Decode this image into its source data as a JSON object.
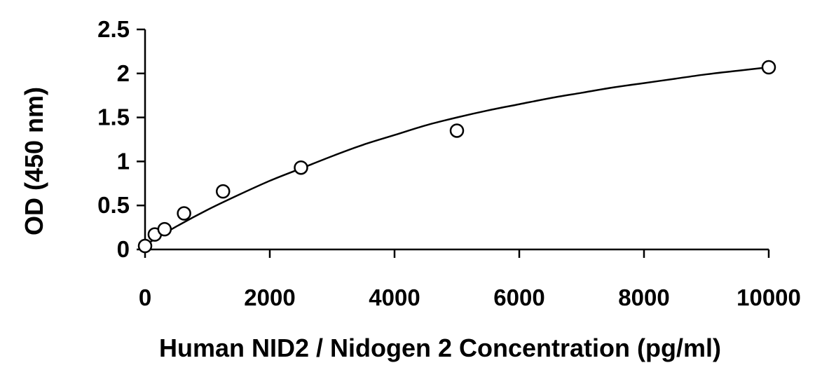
{
  "chart_data": {
    "type": "scatter",
    "title": "",
    "xlabel": "Human NID2 / Nidogen 2 Concentration (pg/ml)",
    "ylabel": "OD (450 nm)",
    "xlim": [
      0,
      10000
    ],
    "ylim": [
      0,
      2.5
    ],
    "x_ticks": [
      0,
      2000,
      4000,
      6000,
      8000,
      10000
    ],
    "x_tick_labels": [
      "0",
      "2000",
      "4000",
      "6000",
      "8000",
      "10000"
    ],
    "y_ticks": [
      0,
      0.5,
      1,
      1.5,
      2,
      2.5
    ],
    "y_tick_labels": [
      "0",
      "0.5",
      "1",
      "1.5",
      "2",
      "2.5"
    ],
    "grid": false,
    "legend": "none",
    "series": [
      {
        "type": "scatter",
        "marker": "open-circle",
        "x": [
          0,
          156,
          313,
          625,
          1250,
          2500,
          5000,
          10000
        ],
        "y": [
          0.04,
          0.17,
          0.23,
          0.41,
          0.66,
          0.93,
          1.35,
          2.07
        ]
      },
      {
        "type": "line",
        "fit": "smooth-curve",
        "x": [
          0,
          500,
          1000,
          1500,
          2000,
          2500,
          3000,
          3500,
          4000,
          4500,
          5000,
          5500,
          6000,
          6500,
          7000,
          7500,
          8000,
          8500,
          9000,
          9500,
          10000
        ],
        "y": [
          0.05,
          0.26,
          0.45,
          0.62,
          0.78,
          0.92,
          1.06,
          1.19,
          1.3,
          1.41,
          1.5,
          1.58,
          1.65,
          1.72,
          1.78,
          1.84,
          1.89,
          1.94,
          1.99,
          2.03,
          2.07
        ]
      }
    ],
    "colors": {
      "marker_stroke": "#000000",
      "marker_fill": "#ffffff",
      "line": "#000000",
      "axis": "#000000"
    }
  }
}
